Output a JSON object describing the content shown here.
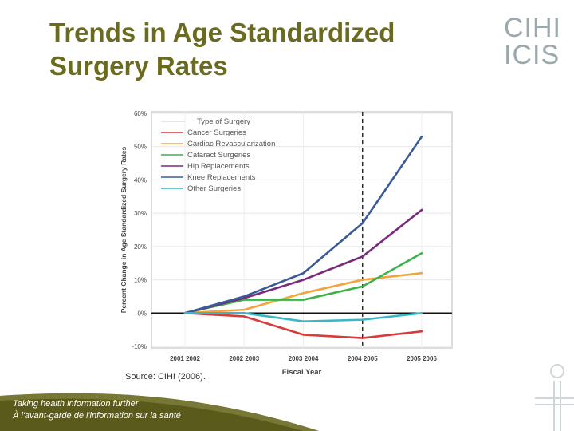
{
  "slide": {
    "title": "Trends in Age Standardized Surgery Rates",
    "logo_line1": "CIHI",
    "logo_line2": "ICIS",
    "source": "Source: CIHI (2006).",
    "tagline_en": "Taking health information further",
    "tagline_fr": "À l'avant-garde de l'information sur la santé",
    "colors": {
      "title": "#6b6b1f",
      "logo": "#9aa9ad",
      "footer": "#5a5a1a"
    }
  },
  "chart_data": {
    "type": "line",
    "title": "",
    "xlabel": "Fiscal Year",
    "ylabel": "Percent Change in Age Standardized Surgery Rates",
    "categories": [
      "2001 2002",
      "2002 2003",
      "2003 2004",
      "2004 2005",
      "2005 2006"
    ],
    "ylim": [
      -10,
      60
    ],
    "yticks": [
      "60%",
      "50%",
      "40%",
      "30%",
      "20%",
      "10%",
      "0%",
      "-10%"
    ],
    "ytick_values": [
      60,
      50,
      40,
      30,
      20,
      10,
      0,
      -10
    ],
    "grid": true,
    "reference_line_y": 0,
    "dashed_vertical_at": "2004 2005",
    "legend_title": "Type of Surgery",
    "legend_position": "top-left",
    "series": [
      {
        "name": "Cancer Surgeries",
        "color": "#d93a3a",
        "values": [
          0,
          -1,
          -6.5,
          -7.5,
          -5.5
        ]
      },
      {
        "name": "Cardiac Revascularization",
        "color": "#f5a33c",
        "values": [
          0,
          1,
          6,
          10,
          12
        ]
      },
      {
        "name": "Cataract Surgeries",
        "color": "#3db24a",
        "values": [
          0,
          4,
          4,
          8,
          18
        ]
      },
      {
        "name": "Hip Replacements",
        "color": "#7a2a7a",
        "values": [
          0,
          4.5,
          10,
          17,
          31
        ]
      },
      {
        "name": "Knee Replacements",
        "color": "#3a5a9a",
        "values": [
          0,
          5,
          12,
          27,
          53
        ]
      },
      {
        "name": "Other Surgeries",
        "color": "#3ab7c7",
        "values": [
          0,
          0,
          -2.5,
          -2,
          0
        ]
      }
    ]
  }
}
